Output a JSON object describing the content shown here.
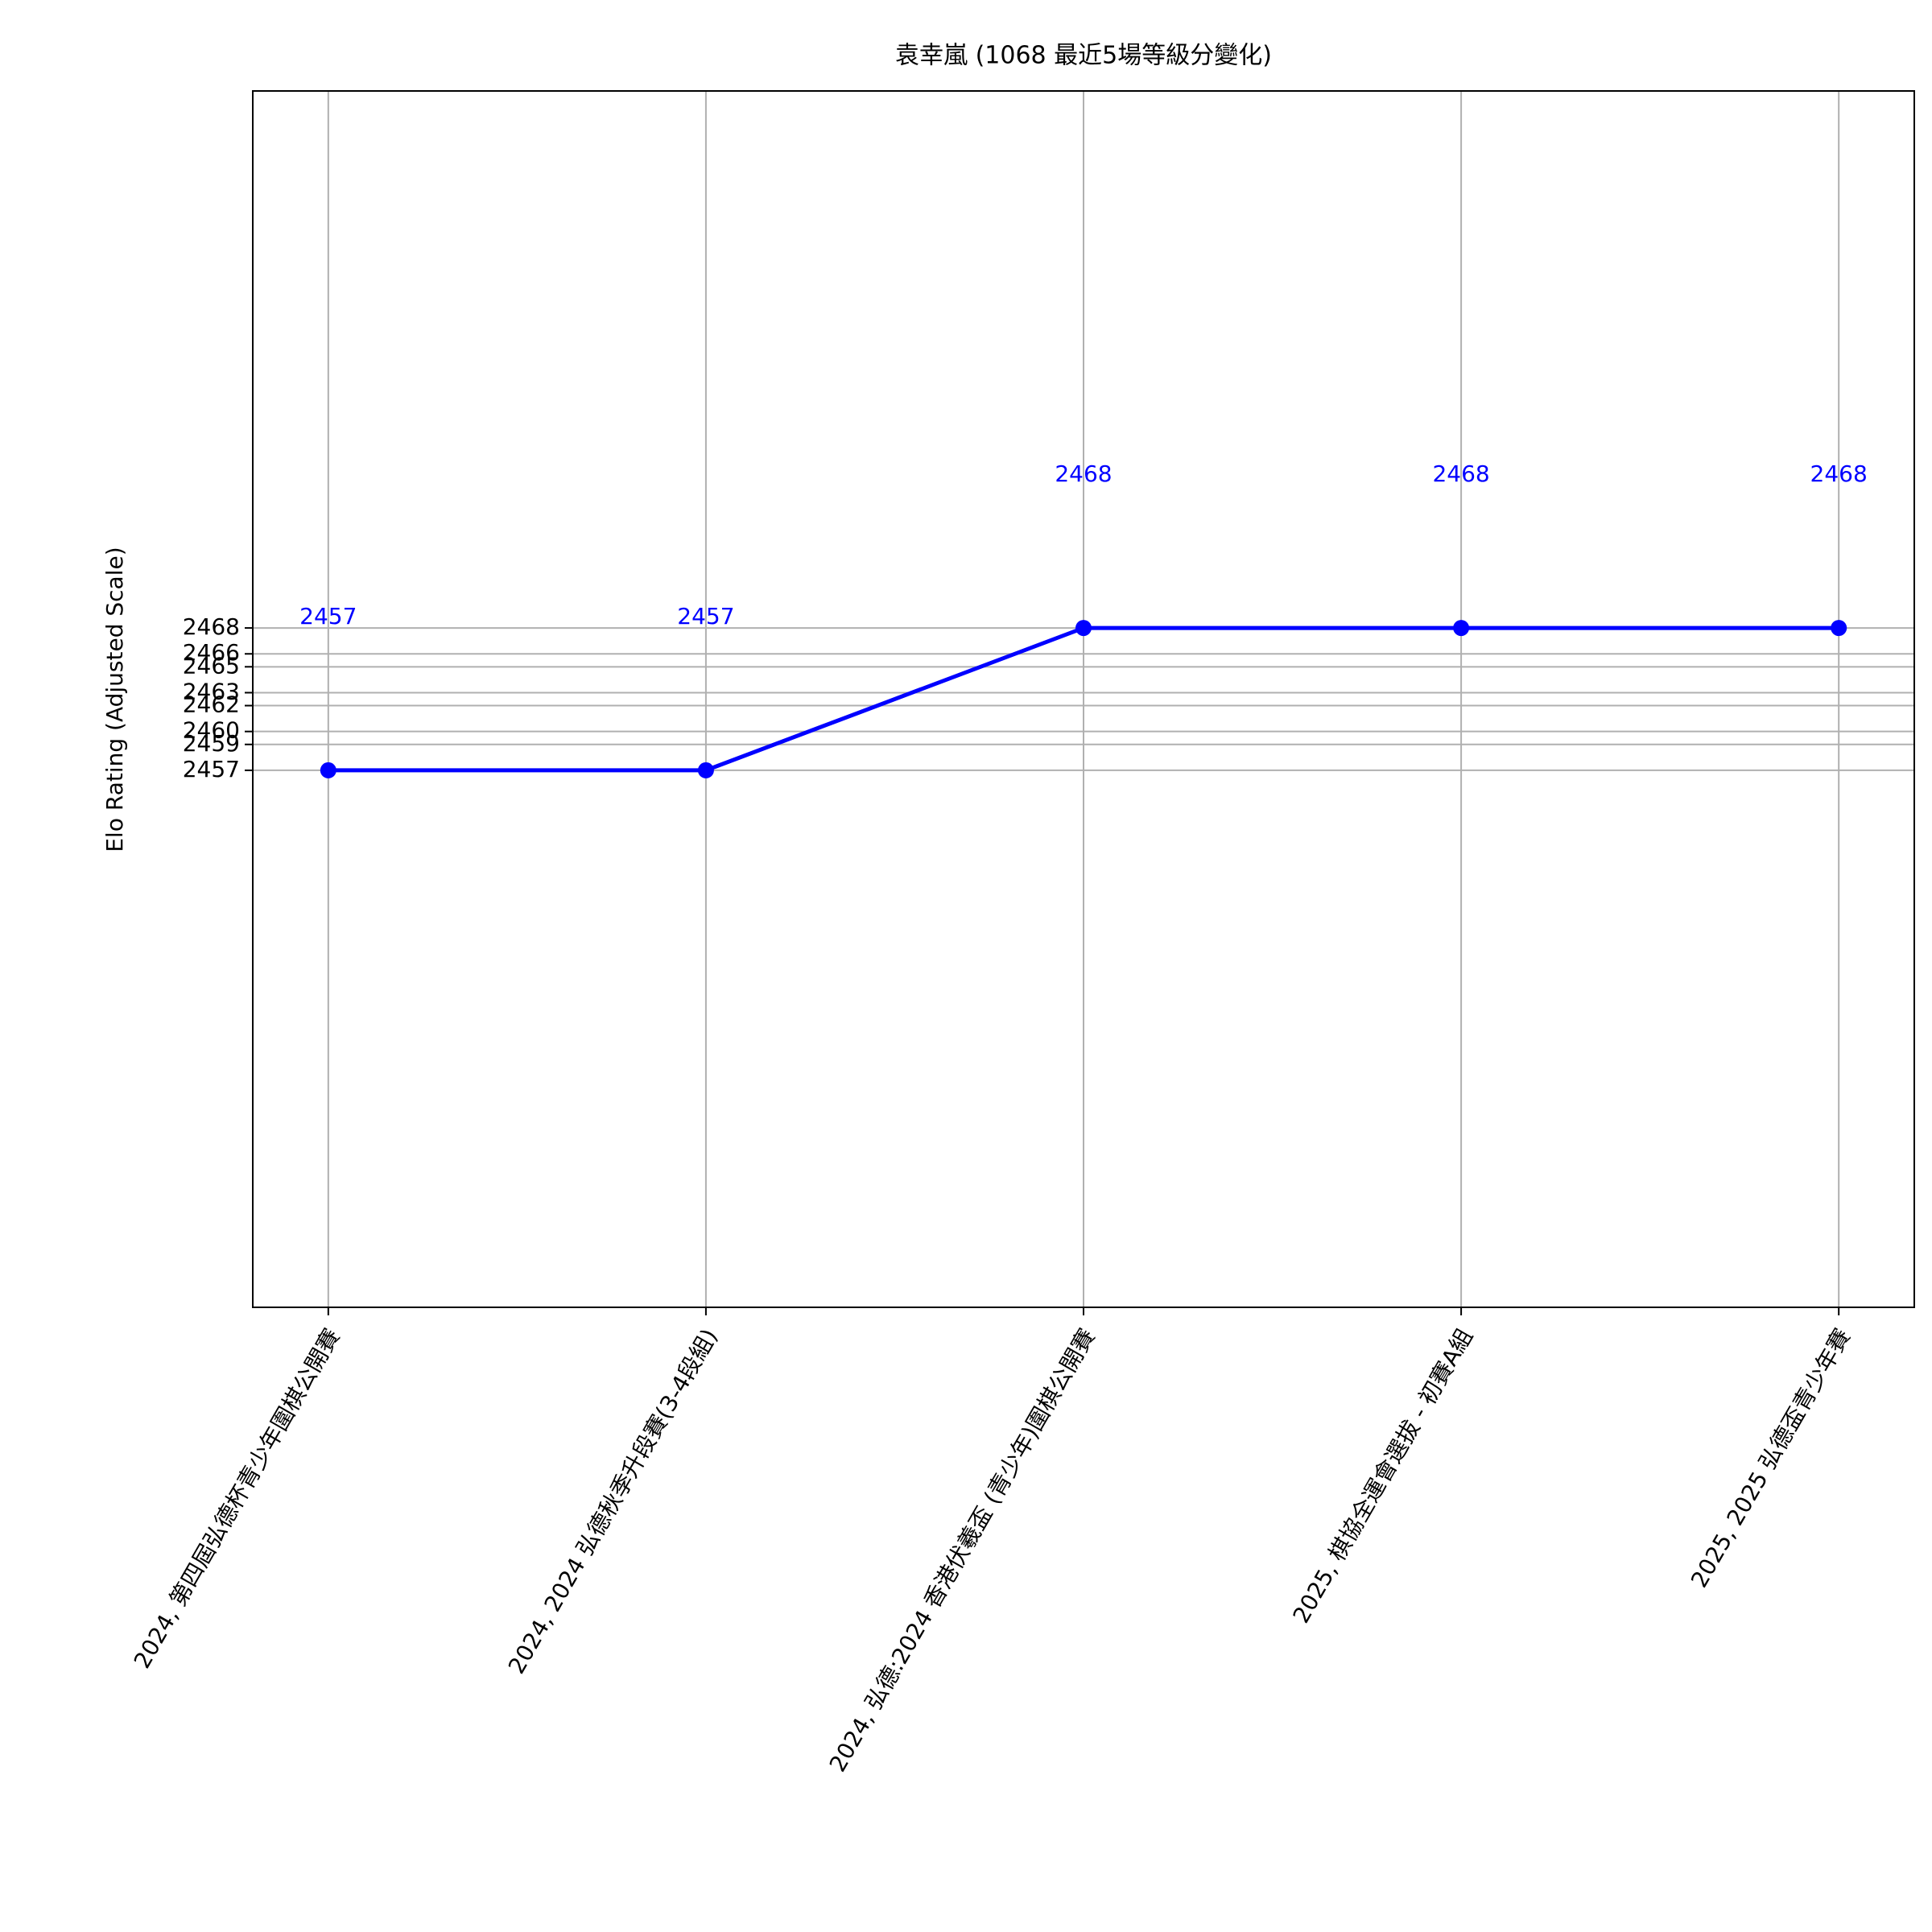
{
  "chart_data": {
    "type": "line",
    "title": "袁幸嵐 (1068 最近5場等級分變化)",
    "y_label": "Elo Rating (Adjusted Scale)",
    "categories": [
      "2024, 第四屆弘德杯青少年圍棋公開賽",
      "2024, 2024 弘德秋季升段賽(3-4段組)",
      "2024, 弘德:2024 香港伏羲盃 (青少年)圍棋公開賽",
      "2025, 棋協全運會選拔 - 初賽A組",
      "2025, 2025 弘德盃青少年賽"
    ],
    "series": [
      {
        "name": "Elo",
        "color": "#0000ff",
        "values": [
          2457,
          2457,
          2468,
          2468,
          2468
        ]
      }
    ],
    "ylim": [
      2415.5,
      2509.5
    ],
    "yticks": [
      2457,
      2459,
      2460,
      2462,
      2463,
      2465,
      2466,
      2468
    ],
    "grid": true
  }
}
